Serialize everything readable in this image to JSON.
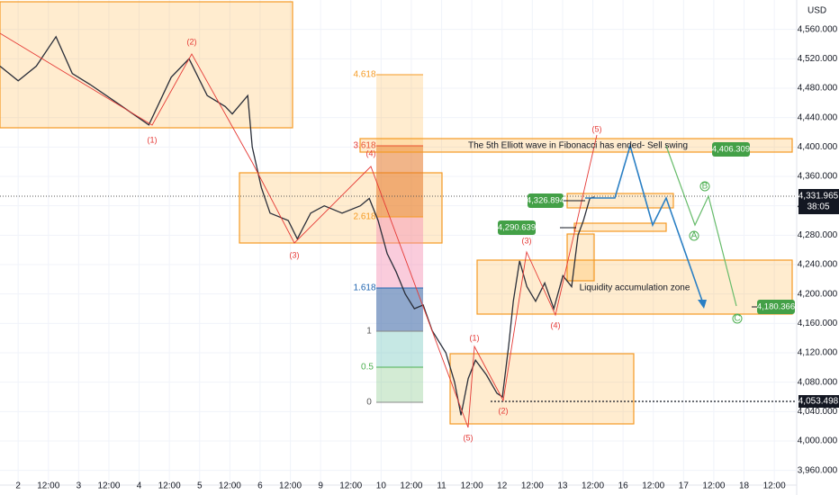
{
  "chart_data": {
    "type": "line",
    "currency": "USD",
    "color": "#2a2e39",
    "x": [
      -0.6,
      0,
      0.6,
      1.25,
      1.79,
      2.38,
      3.27,
      4.32,
      5.06,
      5.65,
      6.25,
      6.85,
      7.08,
      7.59,
      7.74,
      8.04,
      8.33,
      8.93,
      9.23,
      9.67,
      10.12,
      10.71,
      11.31,
      11.61,
      11.9,
      12.2,
      12.5,
      12.8,
      13.1,
      13.39,
      13.69,
      14.14,
      14.43,
      14.64,
      14.88,
      15.12,
      15.48,
      15.83,
      16.01,
      16.22,
      16.37,
      16.58,
      16.82,
      17.11,
      17.41,
      17.71,
      18.01,
      18.3,
      18.51,
      18.69,
      18.9,
      19.05
    ],
    "values": [
      4510,
      4490,
      4510,
      4550,
      4500,
      4485,
      4460,
      4430,
      4495,
      4520,
      4470,
      4455,
      4445,
      4470,
      4400,
      4345,
      4310,
      4300,
      4275,
      4310,
      4320,
      4310,
      4320,
      4330,
      4300,
      4255,
      4230,
      4200,
      4180,
      4185,
      4150,
      4120,
      4080,
      4035,
      4085,
      4110,
      4090,
      4065,
      4060,
      4130,
      4190,
      4245,
      4210,
      4190,
      4215,
      4180,
      4225,
      4210,
      4280,
      4300,
      4330,
      4332
    ],
    "xlim": [
      -0.6,
      25.74
    ],
    "ylim": [
      3940,
      4600
    ],
    "xticks": [
      {
        "value": 0,
        "label": "2"
      },
      {
        "value": 1,
        "label": "12:00"
      },
      {
        "value": 2,
        "label": "3"
      },
      {
        "value": 3,
        "label": "12:00"
      },
      {
        "value": 4,
        "label": "4"
      },
      {
        "value": 5,
        "label": "12:00"
      },
      {
        "value": 6,
        "label": "5"
      },
      {
        "value": 7,
        "label": "12:00"
      },
      {
        "value": 8,
        "label": "6"
      },
      {
        "value": 9,
        "label": "12:00"
      },
      {
        "value": 10,
        "label": "9"
      },
      {
        "value": 11,
        "label": "12:00"
      },
      {
        "value": 12,
        "label": "10"
      },
      {
        "value": 13,
        "label": "12:00"
      },
      {
        "value": 14,
        "label": "11"
      },
      {
        "value": 15,
        "label": "12:00"
      },
      {
        "value": 16,
        "label": "12"
      },
      {
        "value": 17,
        "label": "12:00"
      },
      {
        "value": 18,
        "label": "13"
      },
      {
        "value": 19,
        "label": "12:00"
      },
      {
        "value": 20,
        "label": "16"
      },
      {
        "value": 21,
        "label": "12:00"
      },
      {
        "value": 22,
        "label": "17"
      },
      {
        "value": 23,
        "label": "12:00"
      },
      {
        "value": 24,
        "label": "18"
      },
      {
        "value": 25,
        "label": "12:00"
      }
    ],
    "yticks": [
      {
        "value": 3960,
        "label": "3,960.000"
      },
      {
        "value": 4000,
        "label": "4,000.000"
      },
      {
        "value": 4040,
        "label": "4,040.000"
      },
      {
        "value": 4080,
        "label": "4,080.000"
      },
      {
        "value": 4120,
        "label": "4,120.000"
      },
      {
        "value": 4160,
        "label": "4,160.000"
      },
      {
        "value": 4200,
        "label": "4,200.000"
      },
      {
        "value": 4240,
        "label": "4,240.000"
      },
      {
        "value": 4280,
        "label": "4,280.000"
      },
      {
        "value": 4320,
        "label": "4,320.000"
      },
      {
        "value": 4360,
        "label": "4,360.000"
      },
      {
        "value": 4400,
        "label": "4,400.000"
      },
      {
        "value": 4440,
        "label": "4,440.000"
      },
      {
        "value": 4480,
        "label": "4,480.000"
      },
      {
        "value": 4520,
        "label": "4,520.000"
      },
      {
        "value": 4560,
        "label": "4,560.000"
      }
    ],
    "grid": true,
    "annotations": [
      "The 5th Elliott wave in Fibonacci has ended- Sell swing",
      "Liquidity accumulation zone"
    ],
    "fib_levels": [
      4.618,
      3.618,
      2.618,
      1.618,
      1,
      0.5,
      0
    ],
    "wave_labels": [
      "(2)",
      "(1)",
      "(4)",
      "(3)",
      "(5)",
      "(1)",
      "(2)",
      "(3)",
      "(4)",
      "(5)"
    ],
    "abc_labels": [
      "A",
      "B",
      "C"
    ],
    "price_tags": [
      "4,406.309",
      "4,326.894",
      "4,290.639",
      "4,180.366"
    ],
    "current_price": "4,331.965",
    "countdown": "38:05",
    "level_label": "4,053.498"
  }
}
